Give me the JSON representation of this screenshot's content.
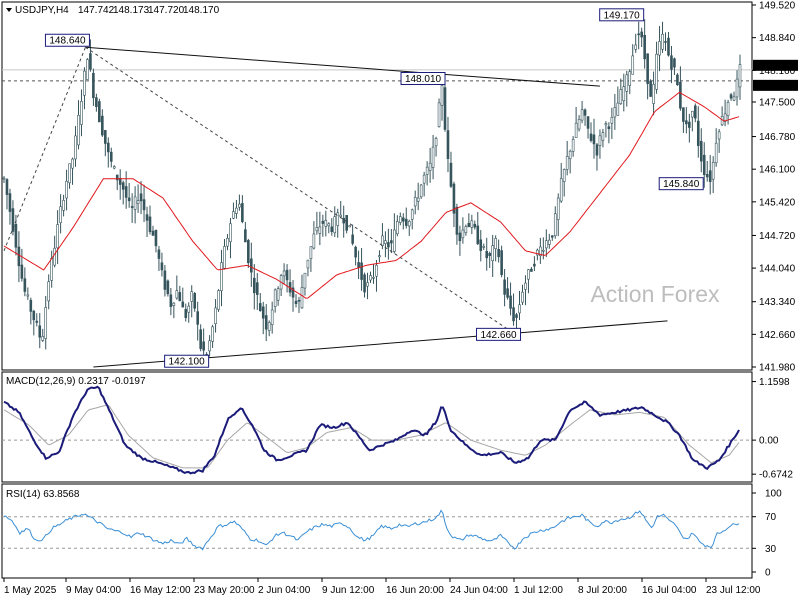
{
  "chart_data": {
    "type": "candlestick",
    "symbol": "USDJPY,H4",
    "ohlc_header": {
      "open": "147.742",
      "high": "148.173",
      "low": "147.720",
      "close": "148.170"
    },
    "watermark": "Action Forex",
    "price_axis": {
      "ticks": [
        "149.520",
        "148.840",
        "148.160",
        "147.500",
        "146.780",
        "146.100",
        "145.420",
        "144.720",
        "144.040",
        "143.340",
        "142.660",
        "141.980"
      ],
      "min": 141.98,
      "max": 149.52
    },
    "current_price_labels": {
      "last": "148.170",
      "level": "147.940"
    },
    "x_axis": {
      "tick_labels": [
        "1 May 2025",
        "9 May 04:00",
        "16 May 12:00",
        "23 May 20:00",
        "2 Jun 04:00",
        "9 Jun 12:00",
        "16 Jun 20:00",
        "24 Jun 04:00",
        "1 Jul 12:00",
        "8 Jul 20:00",
        "16 Jul 04:00",
        "23 Jul 12:00"
      ]
    },
    "price_annotations": [
      {
        "label": "148.640",
        "bar": 82,
        "price": 148.64
      },
      {
        "label": "148.010",
        "bar": 441,
        "price": 148.01
      },
      {
        "label": "149.170",
        "bar": 640,
        "price": 149.17
      },
      {
        "label": "145.840",
        "bar": 710,
        "price": 145.84
      },
      {
        "label": "142.660",
        "bar": 515,
        "price": 142.66
      },
      {
        "label": "142.100",
        "bar": 204,
        "price": 142.1
      }
    ],
    "trendlines": [
      {
        "style": "solid",
        "from": {
          "bar": 82,
          "price": 148.64
        },
        "to": {
          "bar": 600,
          "price": 147.83
        }
      },
      {
        "style": "solid",
        "from": {
          "bar": 90,
          "price": 141.98
        },
        "to": {
          "bar": 668,
          "price": 142.94
        }
      },
      {
        "style": "dashed",
        "from": {
          "bar": 82,
          "price": 148.64
        },
        "to": {
          "bar": 515,
          "price": 142.66
        }
      },
      {
        "style": "dashed",
        "from": {
          "bar": 0,
          "price": 144.4
        },
        "to": {
          "bar": 82,
          "price": 148.64
        }
      }
    ],
    "price_path": [
      [
        0,
        145.9
      ],
      [
        10,
        144.8
      ],
      [
        20,
        143.6
      ],
      [
        30,
        143.0
      ],
      [
        38,
        142.5
      ],
      [
        45,
        143.8
      ],
      [
        55,
        145.0
      ],
      [
        62,
        145.8
      ],
      [
        70,
        146.4
      ],
      [
        78,
        147.6
      ],
      [
        84,
        148.5
      ],
      [
        90,
        147.7
      ],
      [
        98,
        147.0
      ],
      [
        105,
        146.4
      ],
      [
        112,
        146.0
      ],
      [
        120,
        145.7
      ],
      [
        128,
        145.2
      ],
      [
        136,
        145.6
      ],
      [
        145,
        145.0
      ],
      [
        152,
        144.6
      ],
      [
        160,
        143.8
      ],
      [
        168,
        143.3
      ],
      [
        175,
        143.6
      ],
      [
        182,
        143.0
      ],
      [
        190,
        143.5
      ],
      [
        198,
        142.4
      ],
      [
        204,
        142.2
      ],
      [
        212,
        143.0
      ],
      [
        220,
        144.2
      ],
      [
        228,
        145.0
      ],
      [
        236,
        145.5
      ],
      [
        242,
        144.7
      ],
      [
        250,
        143.8
      ],
      [
        258,
        143.2
      ],
      [
        265,
        142.8
      ],
      [
        272,
        143.4
      ],
      [
        280,
        144.0
      ],
      [
        288,
        143.6
      ],
      [
        296,
        143.2
      ],
      [
        304,
        144.1
      ],
      [
        312,
        144.7
      ],
      [
        320,
        145.0
      ],
      [
        330,
        144.9
      ],
      [
        340,
        145.2
      ],
      [
        348,
        144.8
      ],
      [
        356,
        144.1
      ],
      [
        364,
        143.6
      ],
      [
        372,
        143.9
      ],
      [
        380,
        144.6
      ],
      [
        390,
        144.5
      ],
      [
        398,
        145.2
      ],
      [
        406,
        145.0
      ],
      [
        414,
        145.4
      ],
      [
        422,
        145.9
      ],
      [
        430,
        146.2
      ],
      [
        436,
        147.0
      ],
      [
        441,
        147.9
      ],
      [
        446,
        146.4
      ],
      [
        452,
        145.4
      ],
      [
        458,
        144.6
      ],
      [
        465,
        145.0
      ],
      [
        472,
        144.9
      ],
      [
        480,
        144.5
      ],
      [
        488,
        144.2
      ],
      [
        496,
        144.6
      ],
      [
        503,
        143.6
      ],
      [
        510,
        143.2
      ],
      [
        515,
        142.9
      ],
      [
        522,
        143.6
      ],
      [
        530,
        144.0
      ],
      [
        538,
        144.4
      ],
      [
        546,
        144.6
      ],
      [
        553,
        144.8
      ],
      [
        560,
        145.7
      ],
      [
        568,
        146.4
      ],
      [
        575,
        146.9
      ],
      [
        582,
        147.3
      ],
      [
        590,
        146.8
      ],
      [
        597,
        146.5
      ],
      [
        604,
        147.0
      ],
      [
        612,
        147.1
      ],
      [
        620,
        147.6
      ],
      [
        628,
        148.0
      ],
      [
        636,
        148.8
      ],
      [
        640,
        149.0
      ],
      [
        646,
        148.3
      ],
      [
        652,
        147.4
      ],
      [
        658,
        148.6
      ],
      [
        664,
        148.9
      ],
      [
        670,
        148.4
      ],
      [
        676,
        148.1
      ],
      [
        682,
        147.3
      ],
      [
        688,
        146.9
      ],
      [
        694,
        147.4
      ],
      [
        700,
        146.5
      ],
      [
        706,
        146.0
      ],
      [
        712,
        145.9
      ],
      [
        718,
        146.9
      ],
      [
        724,
        147.2
      ],
      [
        730,
        147.6
      ],
      [
        736,
        147.7
      ],
      [
        741,
        148.17
      ]
    ],
    "ma_path": [
      [
        0,
        144.5
      ],
      [
        40,
        144.0
      ],
      [
        70,
        144.9
      ],
      [
        100,
        145.9
      ],
      [
        130,
        145.9
      ],
      [
        160,
        145.5
      ],
      [
        190,
        144.6
      ],
      [
        215,
        144.0
      ],
      [
        245,
        144.1
      ],
      [
        275,
        143.8
      ],
      [
        305,
        143.4
      ],
      [
        335,
        143.9
      ],
      [
        365,
        144.1
      ],
      [
        395,
        144.2
      ],
      [
        420,
        144.6
      ],
      [
        445,
        145.2
      ],
      [
        470,
        145.4
      ],
      [
        500,
        145.0
      ],
      [
        525,
        144.4
      ],
      [
        545,
        144.3
      ],
      [
        570,
        144.8
      ],
      [
        600,
        145.6
      ],
      [
        630,
        146.4
      ],
      [
        655,
        147.3
      ],
      [
        680,
        147.7
      ],
      [
        705,
        147.4
      ],
      [
        725,
        147.1
      ],
      [
        741,
        147.2
      ]
    ],
    "macd": {
      "label": "MACD(12,26,9) 0.2317 -0.0197",
      "ticks": [
        "1.1598",
        "0.00",
        "-0.6742"
      ],
      "main_path": [
        [
          0,
          0.75
        ],
        [
          15,
          0.55
        ],
        [
          30,
          0.0
        ],
        [
          42,
          -0.35
        ],
        [
          55,
          -0.25
        ],
        [
          70,
          0.5
        ],
        [
          84,
          1.0
        ],
        [
          95,
          1.05
        ],
        [
          108,
          0.5
        ],
        [
          122,
          -0.1
        ],
        [
          138,
          -0.35
        ],
        [
          155,
          -0.45
        ],
        [
          170,
          -0.55
        ],
        [
          185,
          -0.65
        ],
        [
          200,
          -0.6
        ],
        [
          212,
          -0.3
        ],
        [
          225,
          0.4
        ],
        [
          238,
          0.65
        ],
        [
          250,
          0.3
        ],
        [
          262,
          -0.2
        ],
        [
          275,
          -0.4
        ],
        [
          290,
          -0.3
        ],
        [
          305,
          -0.2
        ],
        [
          318,
          0.3
        ],
        [
          332,
          0.25
        ],
        [
          346,
          0.35
        ],
        [
          356,
          0.1
        ],
        [
          368,
          -0.2
        ],
        [
          380,
          -0.1
        ],
        [
          395,
          0.0
        ],
        [
          410,
          0.2
        ],
        [
          425,
          0.1
        ],
        [
          436,
          0.4
        ],
        [
          441,
          0.7
        ],
        [
          450,
          0.2
        ],
        [
          465,
          -0.1
        ],
        [
          480,
          -0.3
        ],
        [
          500,
          -0.25
        ],
        [
          515,
          -0.45
        ],
        [
          528,
          -0.35
        ],
        [
          540,
          0.0
        ],
        [
          555,
          0.0
        ],
        [
          570,
          0.6
        ],
        [
          585,
          0.75
        ],
        [
          600,
          0.5
        ],
        [
          615,
          0.55
        ],
        [
          630,
          0.6
        ],
        [
          642,
          0.65
        ],
        [
          655,
          0.5
        ],
        [
          668,
          0.35
        ],
        [
          680,
          0.1
        ],
        [
          694,
          -0.4
        ],
        [
          708,
          -0.55
        ],
        [
          720,
          -0.4
        ],
        [
          730,
          -0.1
        ],
        [
          741,
          0.2317
        ]
      ],
      "signal_path": [
        [
          0,
          0.6
        ],
        [
          25,
          0.3
        ],
        [
          45,
          -0.1
        ],
        [
          65,
          0.1
        ],
        [
          85,
          0.6
        ],
        [
          105,
          0.7
        ],
        [
          125,
          0.1
        ],
        [
          150,
          -0.35
        ],
        [
          180,
          -0.55
        ],
        [
          205,
          -0.55
        ],
        [
          225,
          0.0
        ],
        [
          245,
          0.35
        ],
        [
          265,
          0.05
        ],
        [
          285,
          -0.25
        ],
        [
          305,
          -0.15
        ],
        [
          325,
          0.15
        ],
        [
          350,
          0.25
        ],
        [
          370,
          0.0
        ],
        [
          395,
          0.0
        ],
        [
          420,
          0.1
        ],
        [
          445,
          0.35
        ],
        [
          470,
          0.0
        ],
        [
          500,
          -0.2
        ],
        [
          525,
          -0.3
        ],
        [
          545,
          -0.1
        ],
        [
          570,
          0.3
        ],
        [
          590,
          0.6
        ],
        [
          615,
          0.5
        ],
        [
          640,
          0.55
        ],
        [
          665,
          0.45
        ],
        [
          690,
          -0.1
        ],
        [
          712,
          -0.45
        ],
        [
          730,
          -0.3
        ],
        [
          741,
          -0.0197
        ]
      ],
      "range": [
        -0.75,
        1.25
      ]
    },
    "rsi": {
      "label": "RSI(14) 63.8568",
      "ticks": [
        "100",
        "70",
        "30",
        "0"
      ],
      "levels": [
        70,
        30
      ],
      "path": [
        [
          0,
          72
        ],
        [
          8,
          65
        ],
        [
          16,
          50
        ],
        [
          24,
          55
        ],
        [
          32,
          40
        ],
        [
          40,
          42
        ],
        [
          48,
          55
        ],
        [
          56,
          60
        ],
        [
          64,
          66
        ],
        [
          72,
          70
        ],
        [
          80,
          74
        ],
        [
          88,
          68
        ],
        [
          96,
          62
        ],
        [
          104,
          55
        ],
        [
          112,
          52
        ],
        [
          120,
          50
        ],
        [
          128,
          44
        ],
        [
          136,
          50
        ],
        [
          144,
          45
        ],
        [
          152,
          40
        ],
        [
          160,
          36
        ],
        [
          168,
          40
        ],
        [
          176,
          35
        ],
        [
          184,
          42
        ],
        [
          192,
          33
        ],
        [
          200,
          30
        ],
        [
          208,
          44
        ],
        [
          216,
          58
        ],
        [
          224,
          60
        ],
        [
          232,
          64
        ],
        [
          240,
          54
        ],
        [
          248,
          42
        ],
        [
          256,
          40
        ],
        [
          264,
          33
        ],
        [
          272,
          45
        ],
        [
          280,
          50
        ],
        [
          288,
          46
        ],
        [
          296,
          40
        ],
        [
          304,
          50
        ],
        [
          312,
          56
        ],
        [
          320,
          60
        ],
        [
          330,
          58
        ],
        [
          340,
          62
        ],
        [
          348,
          56
        ],
        [
          356,
          44
        ],
        [
          364,
          40
        ],
        [
          372,
          46
        ],
        [
          380,
          58
        ],
        [
          390,
          55
        ],
        [
          398,
          60
        ],
        [
          406,
          57
        ],
        [
          414,
          61
        ],
        [
          422,
          63
        ],
        [
          430,
          66
        ],
        [
          436,
          70
        ],
        [
          441,
          78
        ],
        [
          446,
          55
        ],
        [
          452,
          44
        ],
        [
          460,
          40
        ],
        [
          468,
          47
        ],
        [
          476,
          45
        ],
        [
          484,
          41
        ],
        [
          492,
          39
        ],
        [
          500,
          46
        ],
        [
          508,
          36
        ],
        [
          515,
          30
        ],
        [
          522,
          42
        ],
        [
          530,
          48
        ],
        [
          538,
          52
        ],
        [
          546,
          54
        ],
        [
          553,
          56
        ],
        [
          560,
          63
        ],
        [
          568,
          68
        ],
        [
          575,
          70
        ],
        [
          582,
          72
        ],
        [
          590,
          62
        ],
        [
          597,
          58
        ],
        [
          604,
          64
        ],
        [
          612,
          63
        ],
        [
          620,
          67
        ],
        [
          628,
          68
        ],
        [
          636,
          74
        ],
        [
          640,
          78
        ],
        [
          646,
          66
        ],
        [
          652,
          56
        ],
        [
          658,
          70
        ],
        [
          664,
          72
        ],
        [
          670,
          64
        ],
        [
          676,
          60
        ],
        [
          682,
          46
        ],
        [
          688,
          42
        ],
        [
          694,
          50
        ],
        [
          700,
          38
        ],
        [
          706,
          34
        ],
        [
          712,
          32
        ],
        [
          718,
          48
        ],
        [
          724,
          52
        ],
        [
          730,
          58
        ],
        [
          736,
          60
        ],
        [
          741,
          63.86
        ]
      ]
    },
    "colors": {
      "candle": "#36545c",
      "ma": "#e0191e",
      "macd_main": "#1b1b7a",
      "macd_signal": "#a7a7a7",
      "rsi": "#3b8fd6",
      "annotation_border": "#1b1b7a",
      "watermark": "#bdbdbd"
    }
  }
}
